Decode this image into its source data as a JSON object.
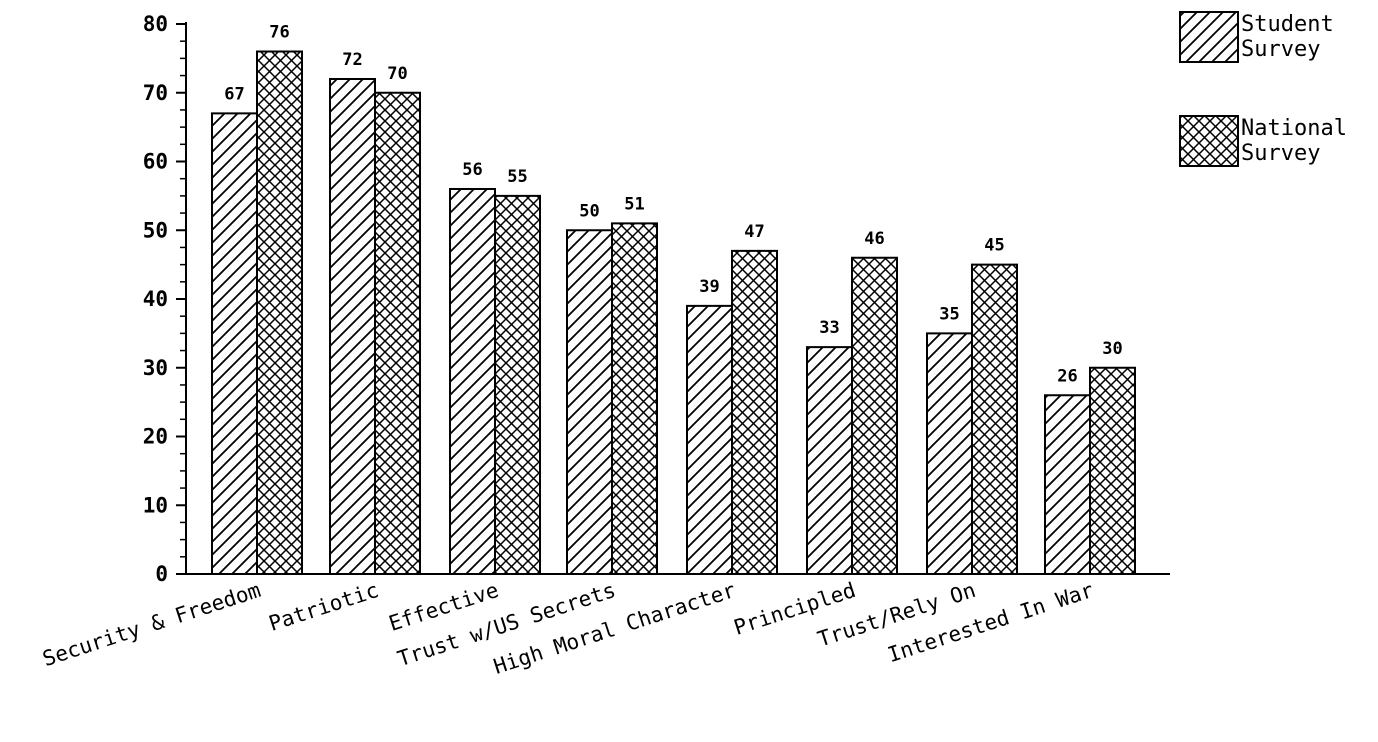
{
  "chart_data": {
    "type": "bar",
    "categories": [
      "Security & Freedom",
      "Patriotic",
      "Effective",
      "Trust w/US Secrets",
      "High Moral Character",
      "Principled",
      "Trust/Rely On",
      "Interested In War"
    ],
    "series": [
      {
        "name": "Student Survey",
        "legend_lines": [
          "Student",
          "Survey"
        ],
        "values": [
          67,
          72,
          56,
          50,
          39,
          33,
          35,
          26
        ],
        "pattern": "diagonal-hatch"
      },
      {
        "name": "National Survey",
        "legend_lines": [
          "National",
          "Survey"
        ],
        "values": [
          76,
          70,
          55,
          51,
          47,
          46,
          45,
          30
        ],
        "pattern": "crosshatch"
      }
    ],
    "y_ticks": [
      0,
      10,
      20,
      30,
      40,
      50,
      60,
      70,
      80
    ],
    "ylim": [
      0,
      80
    ],
    "grid": false,
    "legend_position": "top-right",
    "colors": {
      "stroke": "#000000",
      "background": "#ffffff"
    }
  }
}
